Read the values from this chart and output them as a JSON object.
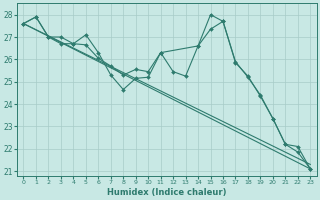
{
  "xlabel": "Humidex (Indice chaleur)",
  "xlim": [
    -0.5,
    23.5
  ],
  "ylim": [
    20.8,
    28.5
  ],
  "yticks": [
    21,
    22,
    23,
    24,
    25,
    26,
    27,
    28
  ],
  "xticks": [
    0,
    1,
    2,
    3,
    4,
    5,
    6,
    7,
    8,
    9,
    10,
    11,
    12,
    13,
    14,
    15,
    16,
    17,
    18,
    19,
    20,
    21,
    22,
    23
  ],
  "bg_color": "#c8e8e4",
  "grid_color": "#a8ccc8",
  "line_color": "#2e7b6e",
  "series": [
    {
      "x": [
        0,
        23
      ],
      "y": [
        27.6,
        21.1
      ],
      "marker": false
    },
    {
      "x": [
        0,
        23
      ],
      "y": [
        27.6,
        21.3
      ],
      "marker": false
    },
    {
      "x": [
        0,
        1,
        2,
        3,
        4,
        5,
        6,
        7,
        8,
        9,
        10,
        11,
        12,
        13,
        14,
        15,
        16,
        17,
        18,
        19,
        20,
        21,
        22,
        23
      ],
      "y": [
        27.6,
        27.9,
        27.0,
        27.0,
        26.7,
        27.1,
        26.3,
        25.3,
        24.65,
        25.15,
        25.2,
        26.3,
        25.45,
        25.25,
        26.6,
        28.0,
        27.7,
        25.9,
        25.2,
        24.4,
        23.35,
        22.2,
        22.1,
        21.1
      ],
      "marker": true
    },
    {
      "x": [
        0,
        1,
        2,
        3,
        4,
        5,
        6,
        7,
        8,
        9,
        10,
        11,
        14,
        15,
        16,
        17,
        18,
        19,
        20,
        21,
        22,
        23
      ],
      "y": [
        27.6,
        27.9,
        27.0,
        26.7,
        26.7,
        26.65,
        26.05,
        25.7,
        25.3,
        25.55,
        25.45,
        26.3,
        26.6,
        27.35,
        27.7,
        25.85,
        25.25,
        24.35,
        23.35,
        22.2,
        21.85,
        21.1
      ],
      "marker": true
    }
  ]
}
